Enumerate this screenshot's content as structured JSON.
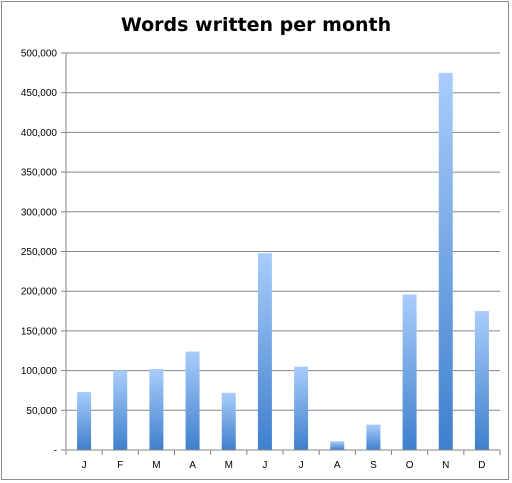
{
  "chart_data": {
    "type": "bar",
    "title": "Words written per month",
    "xlabel": "",
    "ylabel": "",
    "categories": [
      "J",
      "F",
      "M",
      "A",
      "M",
      "J",
      "J",
      "A",
      "S",
      "O",
      "N",
      "D"
    ],
    "values": [
      73000,
      100000,
      102000,
      124000,
      72000,
      248000,
      105000,
      11000,
      32000,
      196000,
      475000,
      175000
    ],
    "ylim": [
      0,
      500000
    ],
    "yticks": [
      0,
      50000,
      100000,
      150000,
      200000,
      250000,
      300000,
      350000,
      400000,
      450000,
      500000
    ],
    "ytick_labels": [
      "-",
      "50,000",
      "100,000",
      "150,000",
      "200,000",
      "250,000",
      "300,000",
      "350,000",
      "400,000",
      "450,000",
      "500,000"
    ],
    "grid": true,
    "legend": "none",
    "colors": {
      "bar_top": "#a9cdfb",
      "bar_bottom": "#3f7fcc",
      "grid": "#868686",
      "axis": "#868686"
    }
  }
}
